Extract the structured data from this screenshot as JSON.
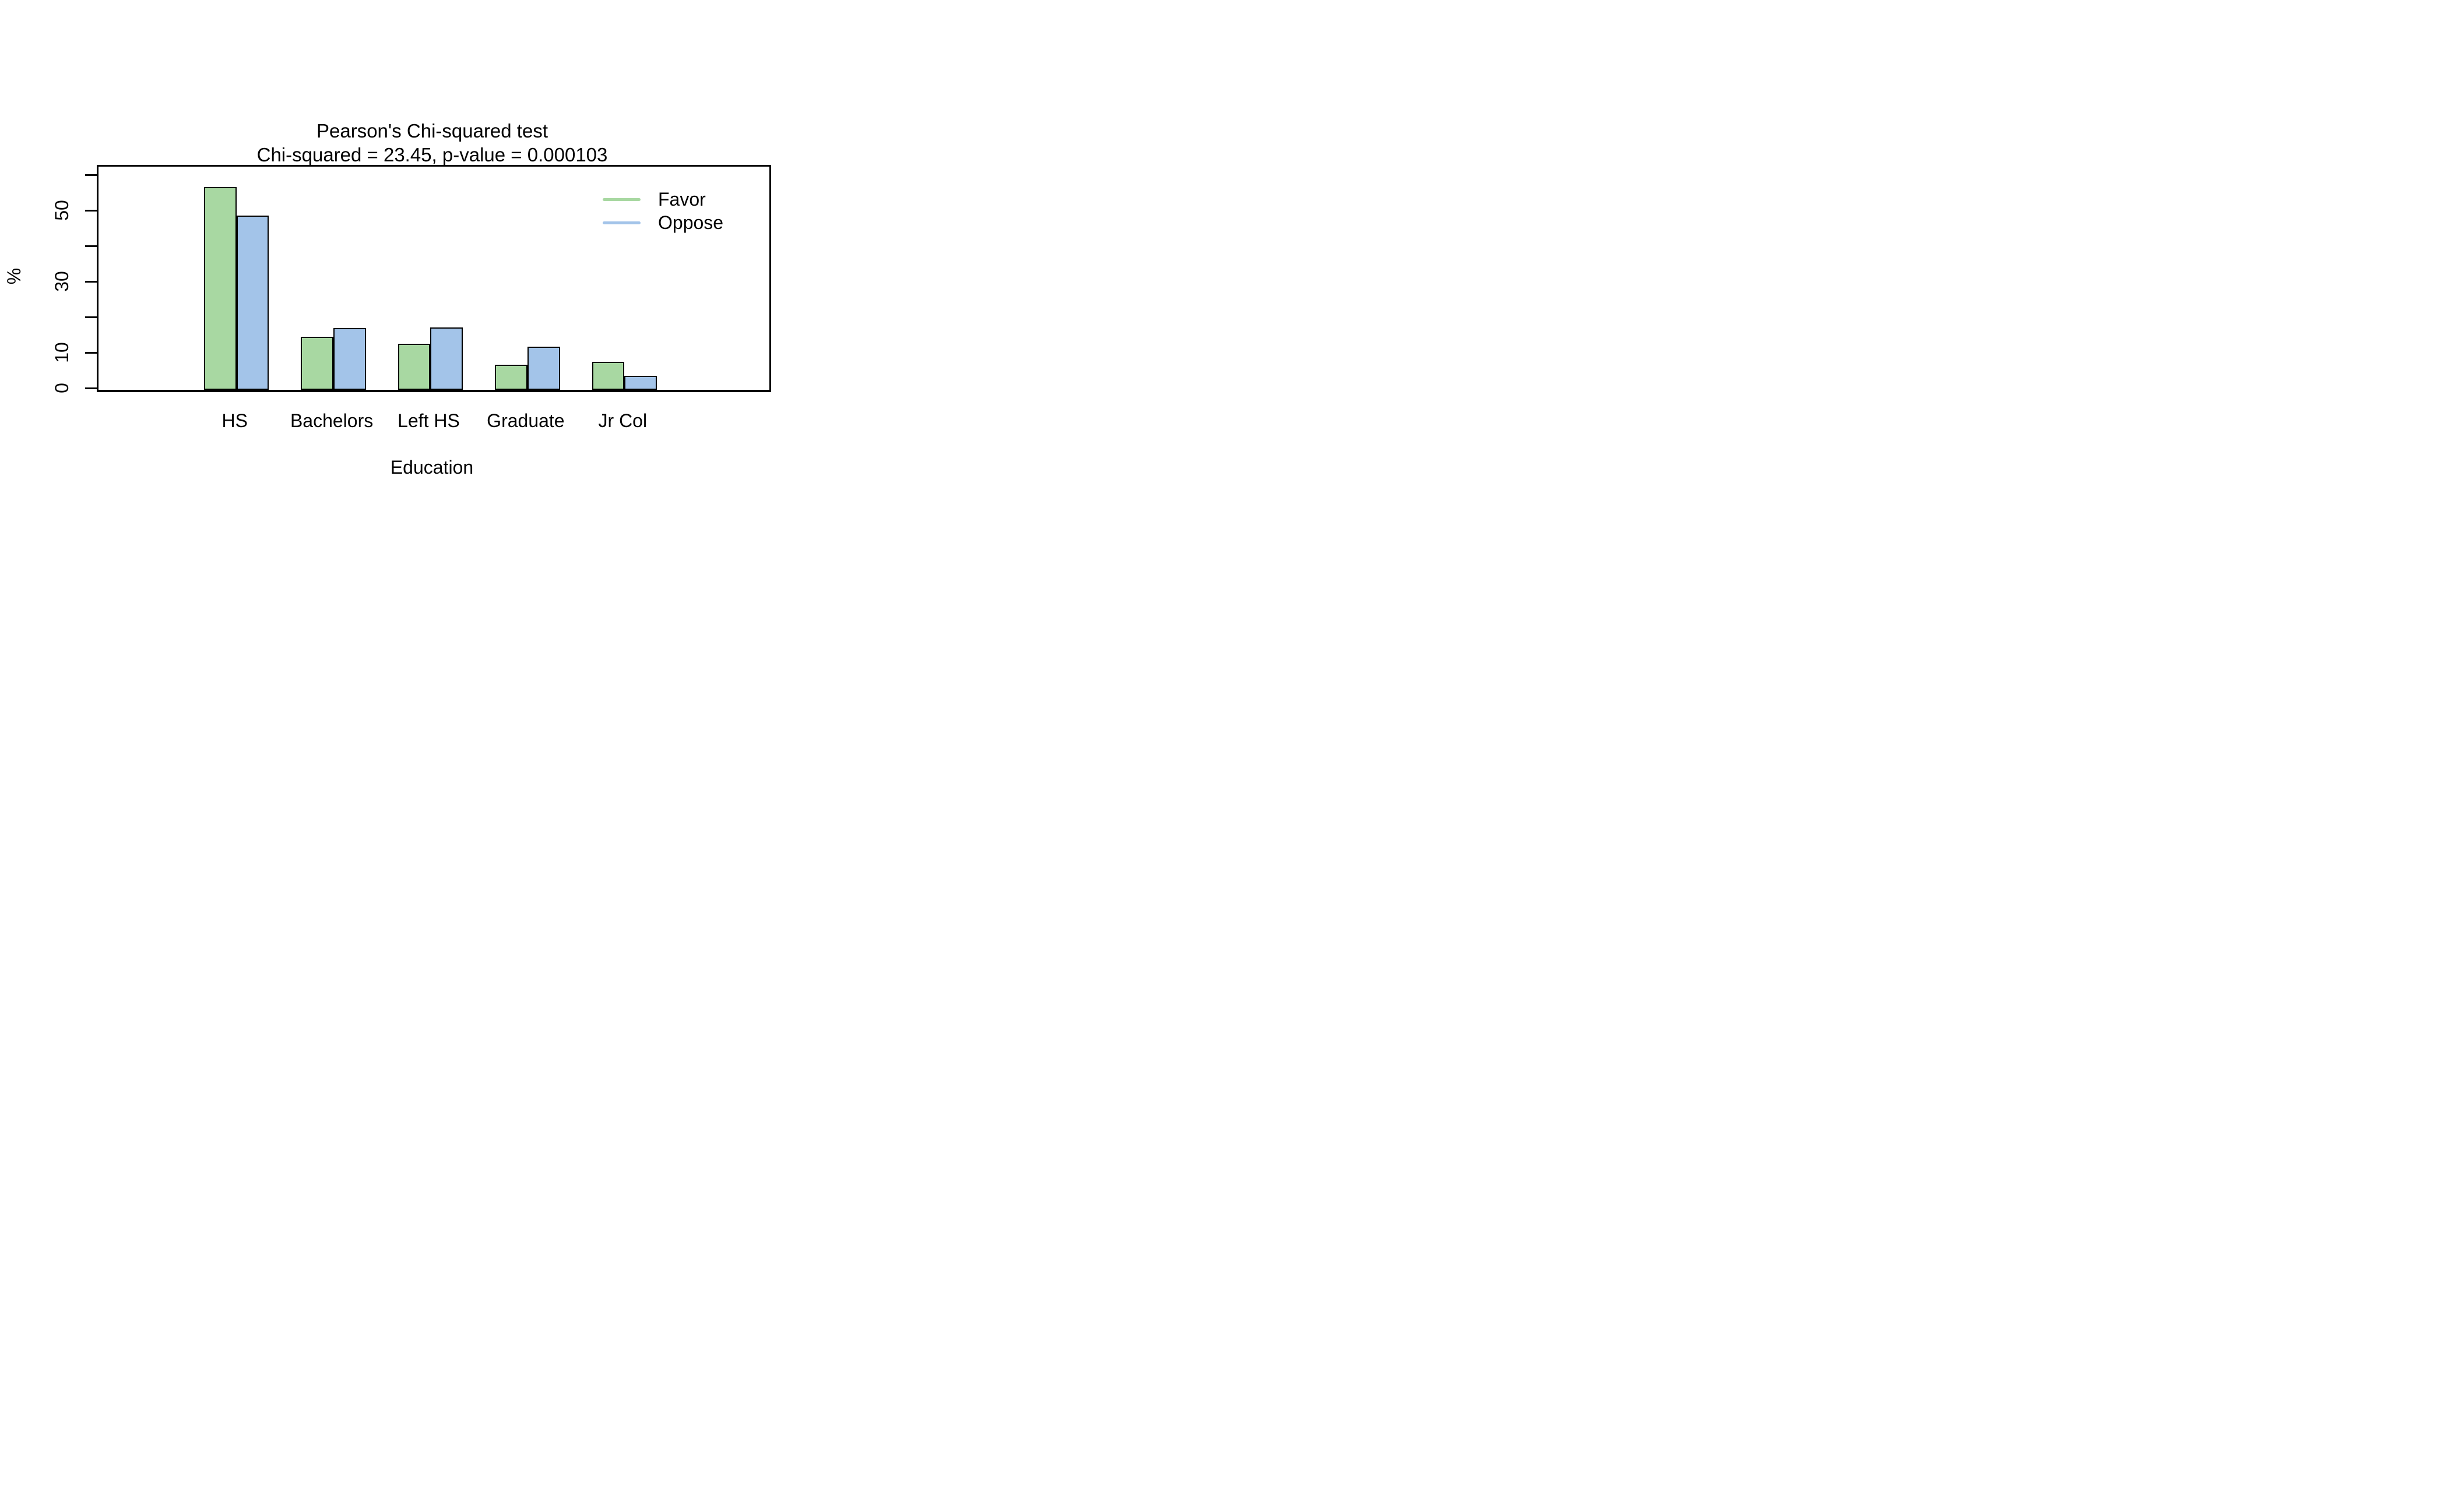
{
  "chart_data": {
    "type": "bar",
    "title": "Pearson's Chi-squared test",
    "subtitle": "Chi-squared = 23.45, p-value = 0.000103",
    "categories": [
      "HS",
      "Bachelors",
      "Left HS",
      "Graduate",
      "Jr Col"
    ],
    "series": [
      {
        "name": "Favor",
        "color": "#A8D8A2",
        "values": [
          57.1,
          15.0,
          12.9,
          7.1,
          7.9
        ]
      },
      {
        "name": "Oppose",
        "color": "#A3C4E9",
        "values": [
          49.0,
          17.4,
          17.6,
          12.2,
          3.9
        ]
      }
    ],
    "xlabel": "Education",
    "ylabel": "%",
    "ylim": [
      0,
      62.8
    ],
    "yticks": [
      0,
      10,
      20,
      30,
      40,
      50,
      60
    ],
    "ytick_labels_shown": [
      0,
      10,
      30,
      50
    ],
    "legend": {
      "position": "top-right",
      "entries": [
        "Favor",
        "Oppose"
      ]
    },
    "grid": false,
    "bar_border_color": "#000000",
    "axis_color": "#000000",
    "background": "#FFFFFF"
  }
}
